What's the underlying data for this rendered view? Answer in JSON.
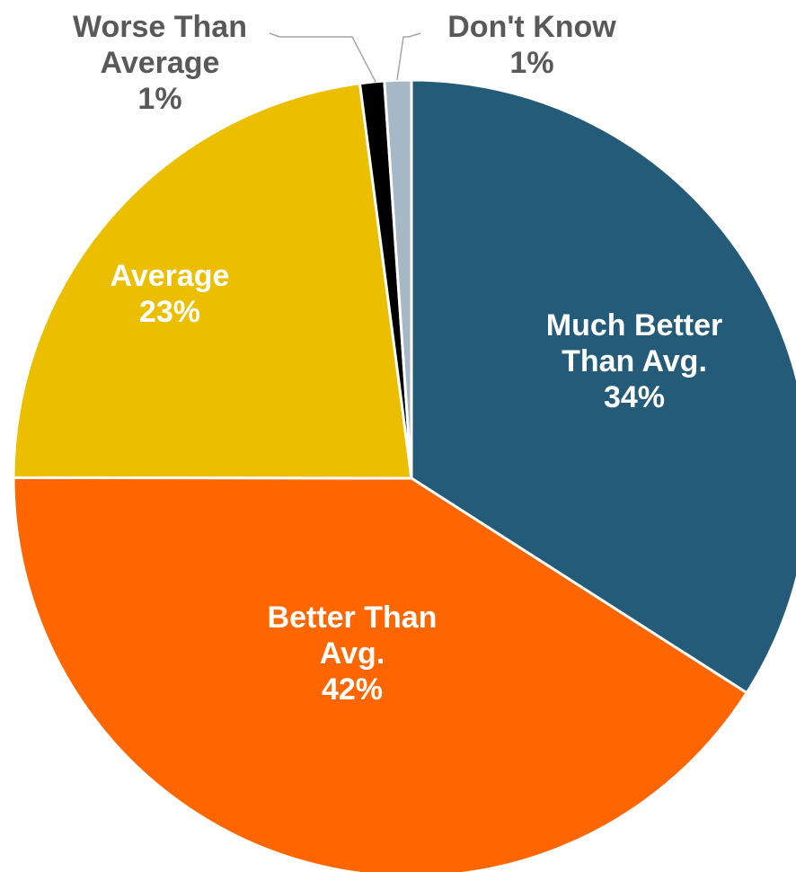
{
  "chart_data": {
    "type": "pie",
    "start_angle_deg": 0,
    "direction": "clockwise",
    "slices": [
      {
        "label": [
          "Much Better",
          "Than Avg."
        ],
        "percent_label": "34%",
        "value": 34.5,
        "color": "#235B79",
        "label_color": "#ffffff",
        "label_position": "inside"
      },
      {
        "label": [
          "Better Than",
          "Avg."
        ],
        "percent_label": "42%",
        "value": 41.5,
        "color": "#FF6600",
        "label_color": "#ffffff",
        "label_position": "inside"
      },
      {
        "label": [
          "Average"
        ],
        "percent_label": "23%",
        "value": 23.2,
        "color": "#EBBE00",
        "label_color": "#ffffff",
        "label_position": "inside"
      },
      {
        "label": [
          "Worse Than",
          "Average"
        ],
        "percent_label": "1%",
        "value": 1.0,
        "color": "#000000",
        "label_color": "#595959",
        "label_position": "outside"
      },
      {
        "label": [
          "Don't Know"
        ],
        "percent_label": "1%",
        "value": 1.1,
        "color": "#A6B7C6",
        "label_color": "#595959",
        "label_position": "outside"
      }
    ],
    "legend": "none",
    "title": ""
  }
}
